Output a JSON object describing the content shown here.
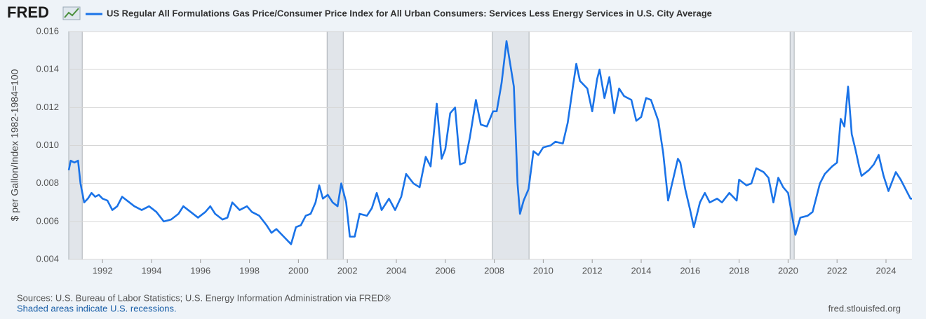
{
  "brand": "FRED",
  "chart_data": {
    "type": "line",
    "ylabel": "$ per Gallon/Index 1982-1984=100",
    "source": "Sources: U.S. Bureau of Labor Statistics; U.S. Energy Information Administration via FRED®",
    "recession_note": "Shaded areas indicate U.S. recessions.",
    "site": "fred.stlouisfed.org",
    "xlim": [
      1990.62,
      2025.06
    ],
    "xticks": [
      1992,
      1994,
      1996,
      1998,
      2000,
      2002,
      2004,
      2006,
      2008,
      2010,
      2012,
      2014,
      2016,
      2018,
      2020,
      2022,
      2024
    ],
    "ylim": [
      0.004,
      0.016
    ],
    "yticks": [
      0.004,
      0.006,
      0.008,
      {
        "value": 0.01,
        "label": "0.010"
      },
      0.012,
      0.014,
      0.016
    ],
    "grid": true,
    "recessions": [
      [
        1990.62,
        1991.17
      ],
      [
        2001.17,
        2001.83
      ],
      [
        2007.92,
        2009.42
      ],
      [
        2020.08,
        2020.25
      ]
    ],
    "x": [
      1990.62,
      1990.7,
      1990.85,
      1991.0,
      1991.1,
      1991.25,
      1991.4,
      1991.55,
      1991.7,
      1991.85,
      1992.0,
      1992.2,
      1992.4,
      1992.6,
      1992.8,
      1993.0,
      1993.3,
      1993.6,
      1993.9,
      1994.2,
      1994.5,
      1994.8,
      1995.1,
      1995.3,
      1995.6,
      1995.9,
      1996.2,
      1996.4,
      1996.6,
      1996.9,
      1997.1,
      1997.3,
      1997.6,
      1997.9,
      1998.1,
      1998.4,
      1998.7,
      1998.9,
      1999.1,
      1999.4,
      1999.7,
      1999.9,
      2000.1,
      2000.3,
      2000.5,
      2000.7,
      2000.85,
      2001.0,
      2001.2,
      2001.4,
      2001.6,
      2001.75,
      2001.95,
      2002.1,
      2002.3,
      2002.5,
      2002.8,
      2003.0,
      2003.2,
      2003.4,
      2003.7,
      2003.95,
      2004.2,
      2004.4,
      2004.7,
      2004.95,
      2005.2,
      2005.4,
      2005.65,
      2005.85,
      2006.0,
      2006.2,
      2006.4,
      2006.6,
      2006.8,
      2007.0,
      2007.25,
      2007.45,
      2007.7,
      2007.95,
      2008.1,
      2008.3,
      2008.5,
      2008.65,
      2008.8,
      2008.95,
      2009.05,
      2009.2,
      2009.4,
      2009.6,
      2009.8,
      2010.0,
      2010.3,
      2010.5,
      2010.8,
      2011.0,
      2011.2,
      2011.35,
      2011.5,
      2011.8,
      2012.0,
      2012.2,
      2012.3,
      2012.5,
      2012.7,
      2012.9,
      2013.1,
      2013.3,
      2013.6,
      2013.8,
      2014.0,
      2014.2,
      2014.4,
      2014.7,
      2014.9,
      2015.1,
      2015.3,
      2015.5,
      2015.6,
      2015.8,
      2016.0,
      2016.15,
      2016.4,
      2016.6,
      2016.8,
      2017.1,
      2017.3,
      2017.6,
      2017.9,
      2018.0,
      2018.3,
      2018.5,
      2018.7,
      2019.0,
      2019.2,
      2019.4,
      2019.6,
      2019.8,
      2020.0,
      2020.15,
      2020.3,
      2020.5,
      2020.8,
      2021.0,
      2021.3,
      2021.5,
      2021.8,
      2022.0,
      2022.15,
      2022.3,
      2022.45,
      2022.6,
      2022.75,
      2022.9,
      2023.0,
      2023.3,
      2023.5,
      2023.7,
      2023.9,
      2024.1,
      2024.4,
      2024.6,
      2024.8,
      2025.0,
      2025.06
    ],
    "series": [
      {
        "name": "US Regular All Formulations Gas Price/Consumer Price Index for All Urban Consumers: Services Less Energy Services in U.S. City Average",
        "color": "#1a73e8",
        "values": [
          0.0087,
          0.0092,
          0.0091,
          0.0092,
          0.008,
          0.007,
          0.0072,
          0.0075,
          0.0073,
          0.0074,
          0.0072,
          0.0071,
          0.0066,
          0.0068,
          0.0073,
          0.0071,
          0.0068,
          0.0066,
          0.0068,
          0.0065,
          0.006,
          0.0061,
          0.0064,
          0.0068,
          0.0065,
          0.0062,
          0.0065,
          0.0068,
          0.0064,
          0.0061,
          0.0062,
          0.007,
          0.0066,
          0.0068,
          0.0065,
          0.0063,
          0.0058,
          0.0054,
          0.0056,
          0.0052,
          0.0048,
          0.0057,
          0.0058,
          0.0063,
          0.0064,
          0.007,
          0.0079,
          0.0072,
          0.0074,
          0.007,
          0.0068,
          0.008,
          0.007,
          0.0052,
          0.0052,
          0.0064,
          0.0063,
          0.0067,
          0.0075,
          0.0066,
          0.0072,
          0.0066,
          0.0073,
          0.0085,
          0.008,
          0.0078,
          0.0094,
          0.0089,
          0.0122,
          0.0093,
          0.0098,
          0.0117,
          0.012,
          0.009,
          0.0091,
          0.0104,
          0.0124,
          0.0111,
          0.011,
          0.0118,
          0.0118,
          0.0133,
          0.0155,
          0.0143,
          0.0131,
          0.008,
          0.0064,
          0.0071,
          0.0077,
          0.0097,
          0.0095,
          0.0099,
          0.01,
          0.0102,
          0.0101,
          0.0112,
          0.013,
          0.0143,
          0.0134,
          0.013,
          0.0118,
          0.0135,
          0.014,
          0.0125,
          0.0136,
          0.0117,
          0.013,
          0.0126,
          0.0124,
          0.0113,
          0.0115,
          0.0125,
          0.0124,
          0.0113,
          0.0096,
          0.0071,
          0.0082,
          0.0093,
          0.0091,
          0.0077,
          0.0066,
          0.0057,
          0.007,
          0.0075,
          0.007,
          0.0072,
          0.007,
          0.0075,
          0.0071,
          0.0082,
          0.0079,
          0.008,
          0.0088,
          0.0086,
          0.0083,
          0.007,
          0.0083,
          0.0078,
          0.0075,
          0.0064,
          0.0053,
          0.0062,
          0.0063,
          0.0065,
          0.008,
          0.0085,
          0.0089,
          0.0091,
          0.0114,
          0.011,
          0.0131,
          0.0106,
          0.0098,
          0.0089,
          0.0084,
          0.0087,
          0.009,
          0.0095,
          0.0084,
          0.0076,
          0.0086,
          0.0082,
          0.0077,
          0.0072,
          0.0072
        ]
      }
    ]
  }
}
